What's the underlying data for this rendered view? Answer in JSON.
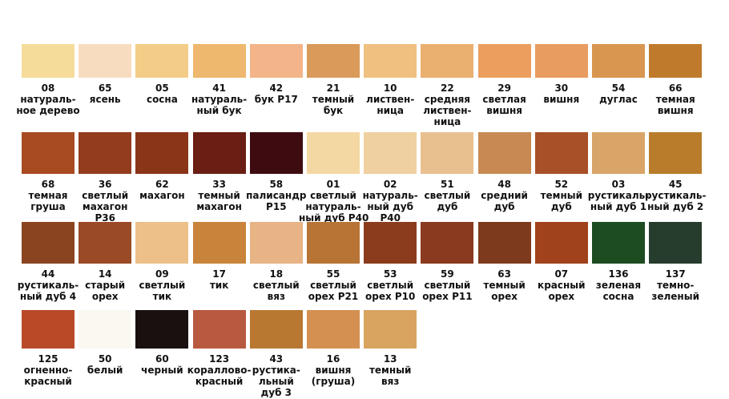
{
  "rows": [
    [
      {
        "code": "08",
        "name": [
          "натураль-",
          "ное дерево"
        ],
        "color": "#f6dc9a"
      },
      {
        "code": "65",
        "name": [
          "ясень"
        ],
        "color": "#f8dcc0"
      },
      {
        "code": "05",
        "name": [
          "сосна"
        ],
        "color": "#f3cc88"
      },
      {
        "code": "41",
        "name": [
          "натураль-",
          "ный бук"
        ],
        "color": "#eeb86e"
      },
      {
        "code": "42",
        "name": [
          "бук Р17"
        ],
        "color": "#f2b488"
      },
      {
        "code": "21",
        "name": [
          "темный",
          "бук"
        ],
        "color": "#d99a5a"
      },
      {
        "code": "10",
        "name": [
          "листвен-",
          "ница"
        ],
        "color": "#f0c080"
      },
      {
        "code": "22",
        "name": [
          "средняя",
          "листвен-",
          "ница"
        ],
        "color": "#e9b070"
      },
      {
        "code": "29",
        "name": [
          "светлая",
          "вишня"
        ],
        "color": "#ec9e5e"
      },
      {
        "code": "30",
        "name": [
          "вишня"
        ],
        "color": "#e99c60"
      },
      {
        "code": "54",
        "name": [
          "дуглас"
        ],
        "color": "#d89650"
      },
      {
        "code": "66",
        "name": [
          "темная",
          "вишня"
        ],
        "color": "#c07a2c"
      }
    ],
    [
      {
        "code": "68",
        "name": [
          "темная",
          "груша"
        ],
        "color": "#a84a22"
      },
      {
        "code": "36",
        "name": [
          "светлый",
          "махагон",
          "Р36"
        ],
        "color": "#933c1e"
      },
      {
        "code": "62",
        "name": [
          "махагон"
        ],
        "color": "#8a3418"
      },
      {
        "code": "33",
        "name": [
          "темный",
          "махагон"
        ],
        "color": "#6a1e14"
      },
      {
        "code": "58",
        "name": [
          "палисандр",
          "Р15"
        ],
        "color": "#3e0c10"
      },
      {
        "code": "01",
        "name": [
          "светлый",
          "натураль-",
          "ный дуб Р40"
        ],
        "color": "#f4d8a4"
      },
      {
        "code": "02",
        "name": [
          "натураль-",
          "ный дуб",
          "Р40"
        ],
        "color": "#efd0a0"
      },
      {
        "code": "51",
        "name": [
          "светлый",
          "дуб"
        ],
        "color": "#e8c090"
      },
      {
        "code": "48",
        "name": [
          "средний",
          "дуб"
        ],
        "color": "#c88a52"
      },
      {
        "code": "52",
        "name": [
          "темный",
          "дуб"
        ],
        "color": "#a85028"
      },
      {
        "code": "03",
        "name": [
          "рустикаль-",
          "ный дуб 1"
        ],
        "color": "#d8a468"
      },
      {
        "code": "45",
        "name": [
          "рустикаль-",
          "ный дуб 2"
        ],
        "color": "#b87c2a"
      }
    ],
    [
      {
        "code": "44",
        "name": [
          "рустикаль-",
          "ный дуб 4"
        ],
        "color": "#8a4420"
      },
      {
        "code": "14",
        "name": [
          "старый",
          "орех"
        ],
        "color": "#9a4a24"
      },
      {
        "code": "09",
        "name": [
          "светлый",
          "тик"
        ],
        "color": "#ecc088"
      },
      {
        "code": "17",
        "name": [
          "тик"
        ],
        "color": "#c8843a"
      },
      {
        "code": "18",
        "name": [
          "светлый",
          "вяз"
        ],
        "color": "#e8b486"
      },
      {
        "code": "55",
        "name": [
          "светлый",
          "орех Р21"
        ],
        "color": "#b87434"
      },
      {
        "code": "53",
        "name": [
          "светлый",
          "орех Р10"
        ],
        "color": "#8a3c1c"
      },
      {
        "code": "59",
        "name": [
          "светлый",
          "орех Р11"
        ],
        "color": "#8a3a1e"
      },
      {
        "code": "63",
        "name": [
          "темный",
          "орех"
        ],
        "color": "#7e3a1c"
      },
      {
        "code": "07",
        "name": [
          "красный",
          "орех"
        ],
        "color": "#a0421c"
      },
      {
        "code": "136",
        "name": [
          "зеленая",
          "сосна"
        ],
        "color": "#1c4c20"
      },
      {
        "code": "137",
        "name": [
          "темно-",
          "зеленый"
        ],
        "color": "#263c2c"
      }
    ],
    [
      {
        "code": "125",
        "name": [
          "огненно-",
          "красный"
        ],
        "color": "#b84a28"
      },
      {
        "code": "50",
        "name": [
          "белый"
        ],
        "color": "#fbf8f2"
      },
      {
        "code": "60",
        "name": [
          "черный"
        ],
        "color": "#1a1010"
      },
      {
        "code": "123",
        "name": [
          "кораллово-",
          "красный"
        ],
        "color": "#b85a40"
      },
      {
        "code": "43",
        "name": [
          "рустика-",
          "льный",
          "дуб 3"
        ],
        "color": "#b87832"
      },
      {
        "code": "16",
        "name": [
          "вишня",
          "(груша)"
        ],
        "color": "#d49050"
      },
      {
        "code": "13",
        "name": [
          "темный",
          "вяз"
        ],
        "color": "#d8a460"
      }
    ]
  ]
}
